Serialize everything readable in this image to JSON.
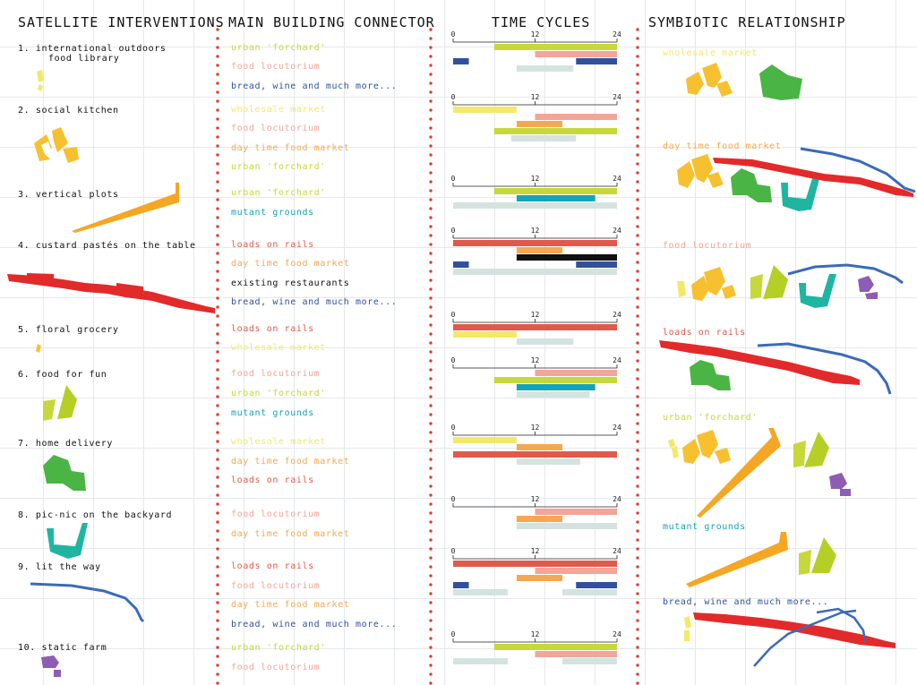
{
  "headers": {
    "satellite": "SATELLITE INTERVENTIONS",
    "connector": "MAIN BUILDING CONNECTOR",
    "cycles": "TIME CYCLES",
    "symbiotic": "SYMBIOTIC RELATIONSHIP"
  },
  "colors": {
    "urban_forchard": "#c6d83a",
    "food_locutorium": "#f3a59a",
    "bread_wine": "#3150a0",
    "wholesale_market": "#f4e86a",
    "day_time_food_market": "#f5a852",
    "mutant_grounds": "#14a3b8",
    "loads_on_rails": "#e05a4c",
    "existing_restaurants": "#111111",
    "baseline": "#d5e3e0",
    "divider_dots": "#e23b2e"
  },
  "satellites": [
    {
      "num": "1.",
      "label": "international outdoors",
      "label2": "food library"
    },
    {
      "num": "2.",
      "label": "social kitchen"
    },
    {
      "num": "3.",
      "label": "vertical plots"
    },
    {
      "num": "4.",
      "label": "custard pastés on the table"
    },
    {
      "num": "5.",
      "label": "floral grocery"
    },
    {
      "num": "6.",
      "label": "food for fun"
    },
    {
      "num": "7.",
      "label": "home delivery"
    },
    {
      "num": "8.",
      "label": "pic-nic on the backyard"
    },
    {
      "num": "9.",
      "label": "lit the way"
    },
    {
      "num": "10.",
      "label": "static farm"
    }
  ],
  "connectors": [
    {
      "text": "urban 'forchard'",
      "color": "#c6d83a"
    },
    {
      "text": "food locutorium",
      "color": "#f3a59a"
    },
    {
      "text": "bread, wine and much more...",
      "color": "#3150a0"
    },
    {
      "text": "wholesale market",
      "color": "#f4e86a"
    },
    {
      "text": "food locutorium",
      "color": "#f3a59a"
    },
    {
      "text": "day time food market",
      "color": "#f5a852"
    },
    {
      "text": "urban 'forchard'",
      "color": "#c6d83a"
    },
    {
      "text": "urban 'forchard'",
      "color": "#c6d83a"
    },
    {
      "text": "mutant grounds",
      "color": "#14a3b8"
    },
    {
      "text": "loads on rails",
      "color": "#e05a4c"
    },
    {
      "text": "day time food market",
      "color": "#f5a852"
    },
    {
      "text": "existing restaurants",
      "color": "#111111"
    },
    {
      "text": "bread, wine and much more...",
      "color": "#3150a0"
    },
    {
      "text": "loads on rails",
      "color": "#e05a4c"
    },
    {
      "text": "wholesale market",
      "color": "#f4e86a"
    },
    {
      "text": "food locutorium",
      "color": "#f3a59a"
    },
    {
      "text": "urban 'forchard'",
      "color": "#c6d83a"
    },
    {
      "text": "mutant grounds",
      "color": "#14a3b8"
    },
    {
      "text": "wholesale market",
      "color": "#f4e86a"
    },
    {
      "text": "day time food market",
      "color": "#f5a852"
    },
    {
      "text": "loads on rails",
      "color": "#e05a4c"
    },
    {
      "text": "food locutorium",
      "color": "#f3a59a"
    },
    {
      "text": "day time food market",
      "color": "#f5a852"
    },
    {
      "text": "loads on rails",
      "color": "#e05a4c"
    },
    {
      "text": "food locutorium",
      "color": "#f3a59a"
    },
    {
      "text": "day time food market",
      "color": "#f5a852"
    },
    {
      "text": "bread, wine and much more...",
      "color": "#3150a0"
    },
    {
      "text": "urban 'forchard'",
      "color": "#c6d83a"
    },
    {
      "text": "food locutorium",
      "color": "#f3a59a"
    }
  ],
  "symbiotic": [
    {
      "text": "wholesale market",
      "color": "#f4e86a"
    },
    {
      "text": "day time food market",
      "color": "#f5a852"
    },
    {
      "text": "food locutorium",
      "color": "#f3a59a"
    },
    {
      "text": "loads on rails",
      "color": "#e05a4c"
    },
    {
      "text": "urban 'forchard'",
      "color": "#c6d83a"
    },
    {
      "text": "mutant grounds",
      "color": "#14a3b8"
    },
    {
      "text": "bread, wine and much more...",
      "color": "#3150a0"
    }
  ],
  "chart_data": {
    "type": "bar",
    "axis_ticks": [
      "0",
      "12",
      "24"
    ],
    "xlim": [
      0,
      24
    ],
    "cycles": [
      {
        "intervention": "1",
        "bars": [
          {
            "color": "#c6d83a",
            "start": 6,
            "end": 24
          },
          {
            "color": "#f3a59a",
            "start": 12,
            "end": 24
          },
          {
            "color": "#3150a0",
            "start": 0,
            "end": 2.3
          },
          {
            "color": "#3150a0",
            "start": 18,
            "end": 24
          },
          {
            "color": "#d5e3e0",
            "start": 9.3,
            "end": 17.6
          }
        ]
      },
      {
        "intervention": "2",
        "bars": [
          {
            "color": "#f4e86a",
            "start": 0,
            "end": 9.3
          },
          {
            "color": "#f3a59a",
            "start": 12,
            "end": 24
          },
          {
            "color": "#f5a852",
            "start": 9.3,
            "end": 16
          },
          {
            "color": "#c6d83a",
            "start": 6,
            "end": 24
          },
          {
            "color": "#d5e3e0",
            "start": 8.5,
            "end": 18
          }
        ]
      },
      {
        "intervention": "3",
        "bars": [
          {
            "color": "#c6d83a",
            "start": 6,
            "end": 24
          },
          {
            "color": "#14a3b8",
            "start": 9.3,
            "end": 20.8
          },
          {
            "color": "#d5e3e0",
            "start": 0,
            "end": 24
          }
        ]
      },
      {
        "intervention": "4",
        "bars": [
          {
            "color": "#e05a4c",
            "start": 0,
            "end": 24
          },
          {
            "color": "#f5a852",
            "start": 9.3,
            "end": 16
          },
          {
            "color": "#111111",
            "start": 9.3,
            "end": 24
          },
          {
            "color": "#3150a0",
            "start": 0,
            "end": 2.3
          },
          {
            "color": "#3150a0",
            "start": 18,
            "end": 24
          },
          {
            "color": "#d5e3e0",
            "start": 0,
            "end": 24
          }
        ]
      },
      {
        "intervention": "5",
        "bars": [
          {
            "color": "#e05a4c",
            "start": 0,
            "end": 24
          },
          {
            "color": "#f4e86a",
            "start": 0,
            "end": 9.3
          },
          {
            "color": "#d5e3e0",
            "start": 9.3,
            "end": 17.6
          }
        ]
      },
      {
        "intervention": "6",
        "bars": [
          {
            "color": "#f3a59a",
            "start": 12,
            "end": 24
          },
          {
            "color": "#c6d83a",
            "start": 6,
            "end": 24
          },
          {
            "color": "#14a3b8",
            "start": 9.3,
            "end": 20.8
          },
          {
            "color": "#d5e3e0",
            "start": 9.3,
            "end": 20
          }
        ]
      },
      {
        "intervention": "7",
        "bars": [
          {
            "color": "#f4e86a",
            "start": 0,
            "end": 9.3
          },
          {
            "color": "#f5a852",
            "start": 9.3,
            "end": 16
          },
          {
            "color": "#e05a4c",
            "start": 0,
            "end": 24
          },
          {
            "color": "#d5e3e0",
            "start": 9.3,
            "end": 18.6
          }
        ]
      },
      {
        "intervention": "8",
        "bars": [
          {
            "color": "#f3a59a",
            "start": 12,
            "end": 24
          },
          {
            "color": "#f5a852",
            "start": 9.3,
            "end": 16
          },
          {
            "color": "#d5e3e0",
            "start": 9.3,
            "end": 24
          }
        ]
      },
      {
        "intervention": "9",
        "bars": [
          {
            "color": "#e05a4c",
            "start": 0,
            "end": 24
          },
          {
            "color": "#f3a59a",
            "start": 12,
            "end": 24
          },
          {
            "color": "#f5a852",
            "start": 9.3,
            "end": 16
          },
          {
            "color": "#3150a0",
            "start": 0,
            "end": 2.3
          },
          {
            "color": "#3150a0",
            "start": 18,
            "end": 24
          },
          {
            "color": "#d5e3e0",
            "start": 0,
            "end": 8
          },
          {
            "color": "#d5e3e0",
            "start": 16,
            "end": 24
          }
        ]
      },
      {
        "intervention": "10",
        "bars": [
          {
            "color": "#c6d83a",
            "start": 6,
            "end": 24
          },
          {
            "color": "#f3a59a",
            "start": 12,
            "end": 24
          },
          {
            "color": "#d5e3e0",
            "start": 0,
            "end": 8
          },
          {
            "color": "#d5e3e0",
            "start": 16,
            "end": 24
          }
        ]
      }
    ]
  }
}
